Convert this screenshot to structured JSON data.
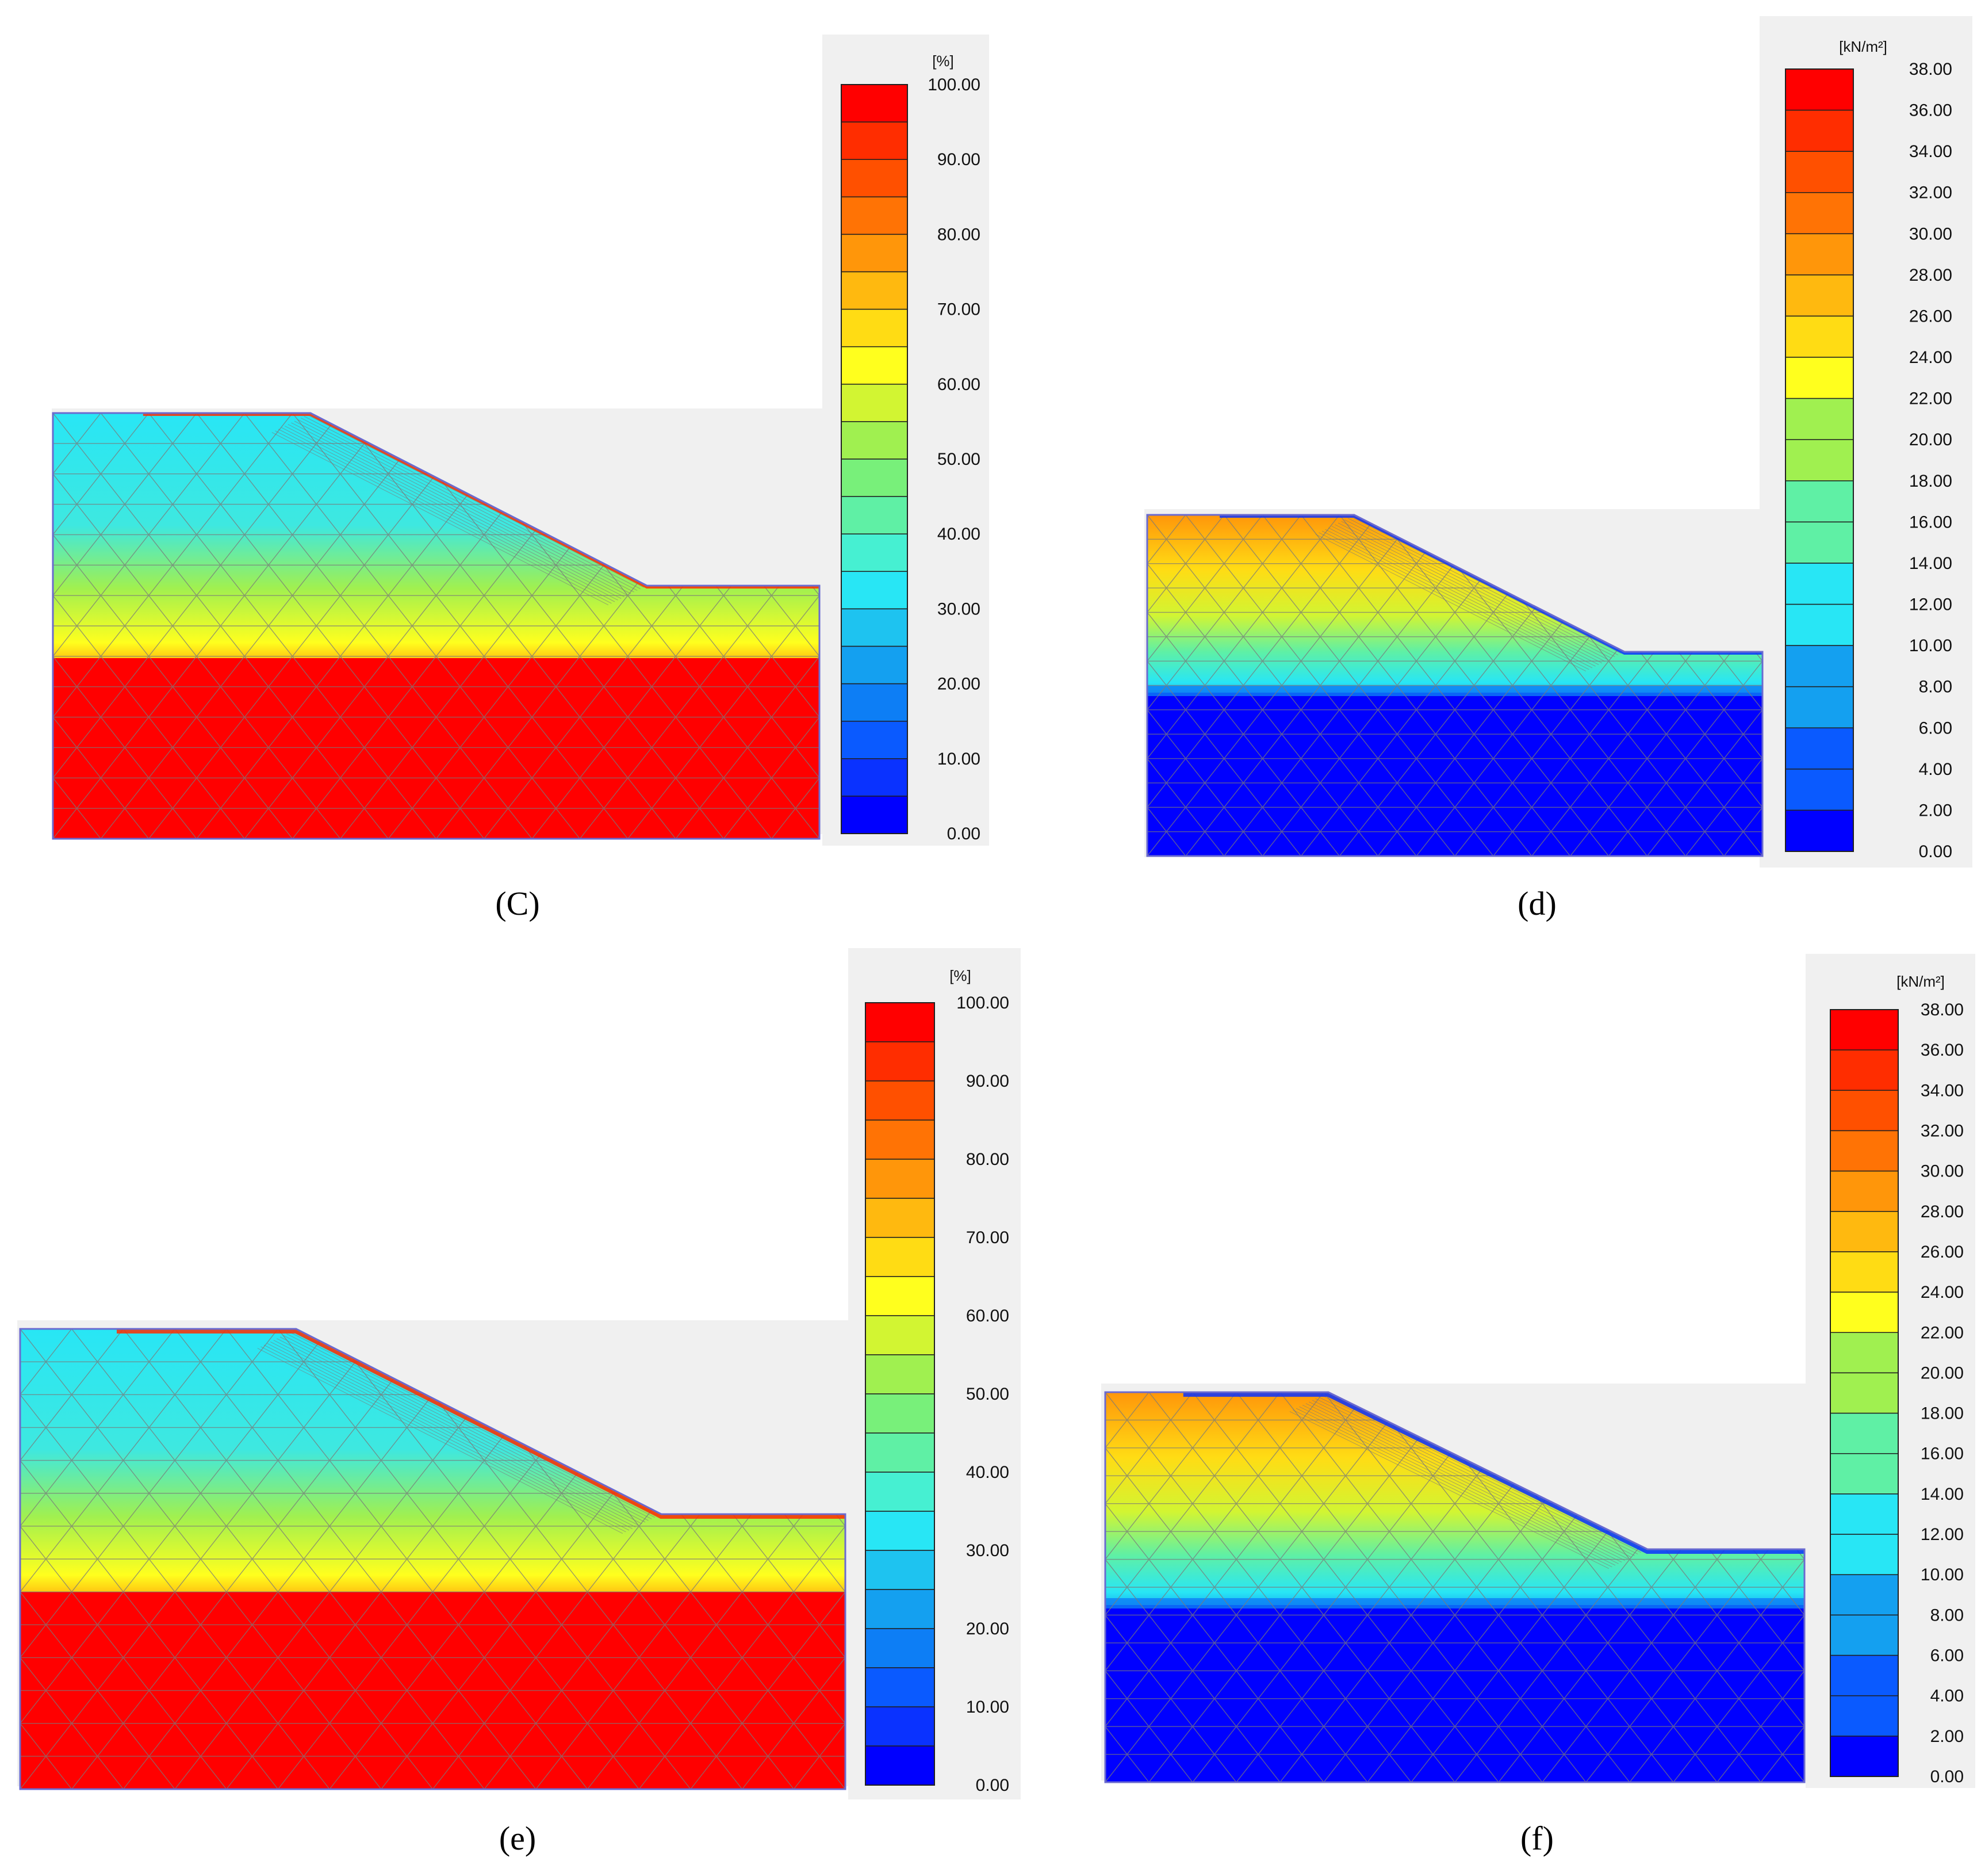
{
  "panels": [
    {
      "caption": "(C)",
      "legend": {
        "unit": "[%]",
        "min": 0,
        "max": 100,
        "ticks": [
          "100.00",
          "90.00",
          "80.00",
          "70.00",
          "60.00",
          "50.00",
          "40.00",
          "30.00",
          "20.00",
          "10.00",
          "0.00"
        ]
      },
      "field": "saturation",
      "variant": "c"
    },
    {
      "caption": "(d)",
      "legend": {
        "unit": "[kN/m²]",
        "min": 0,
        "max": 38,
        "ticks": [
          "38.00",
          "36.00",
          "34.00",
          "32.00",
          "30.00",
          "28.00",
          "26.00",
          "24.00",
          "22.00",
          "20.00",
          "18.00",
          "16.00",
          "14.00",
          "12.00",
          "10.00",
          "8.00",
          "6.00",
          "4.00",
          "2.00",
          "0.00"
        ]
      },
      "field": "suction",
      "variant": "d"
    },
    {
      "caption": "(e)",
      "legend": {
        "unit": "[%]",
        "min": 0,
        "max": 100,
        "ticks": [
          "100.00",
          "90.00",
          "80.00",
          "70.00",
          "60.00",
          "50.00",
          "40.00",
          "30.00",
          "20.00",
          "10.00",
          "0.00"
        ]
      },
      "field": "saturation",
      "variant": "e"
    },
    {
      "caption": "(f)",
      "legend": {
        "unit": "[kN/m²]",
        "min": 0,
        "max": 38,
        "ticks": [
          "38.00",
          "36.00",
          "34.00",
          "32.00",
          "30.00",
          "28.00",
          "26.00",
          "24.00",
          "22.00",
          "20.00",
          "18.00",
          "16.00",
          "14.00",
          "12.00",
          "10.00",
          "8.00",
          "6.00",
          "4.00",
          "2.00",
          "0.00"
        ]
      },
      "field": "suction",
      "variant": "f"
    }
  ],
  "colors": {
    "scale": [
      "#0000ff",
      "#0a32ff",
      "#0a5aff",
      "#0d7ef5",
      "#14a0f0",
      "#1ec3f0",
      "#28e6f5",
      "#46f0d2",
      "#5ff0a5",
      "#78f07a",
      "#a0f050",
      "#d2f532",
      "#ffff1e",
      "#ffdc14",
      "#ffb90f",
      "#ff960a",
      "#ff7305",
      "#ff5000",
      "#ff2d00",
      "#ff0000"
    ],
    "background_panel": "#f0f0f0",
    "mesh_line": "#7a7a7a",
    "outline": "#6a6ad0"
  }
}
